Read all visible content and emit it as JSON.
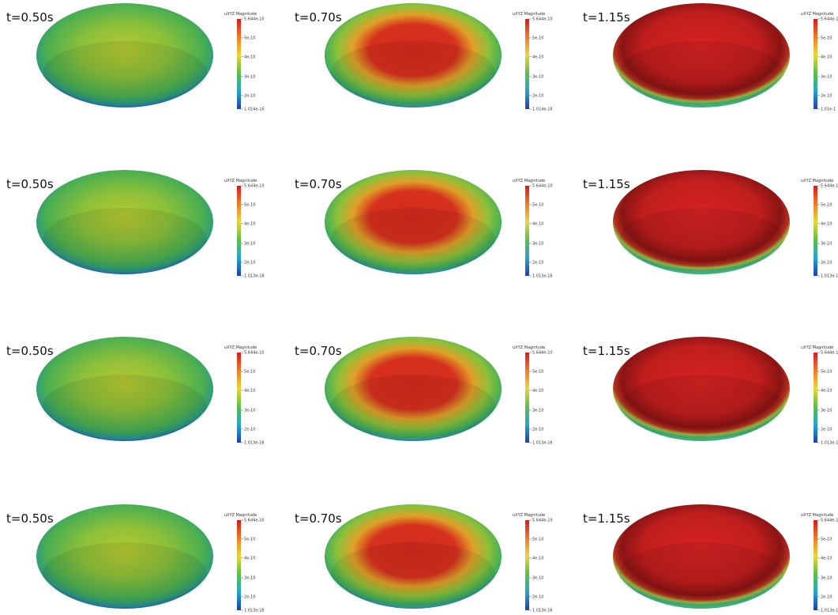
{
  "rows": [
    {
      "panels": [
        {
          "time": "t=0.50s",
          "legend": {
            "title": "uXYZ Magnitude",
            "ticks": [
              "5.644e-10",
              "5e-10",
              "4e-10",
              "3e-10",
              "2e-10",
              "1.014e-16"
            ]
          }
        },
        {
          "time": "t=0.70s",
          "legend": {
            "title": "uXYZ Magnitude",
            "ticks": [
              "5.644e-10",
              "5e-10",
              "4e-10",
              "3e-10",
              "2e-10",
              "1.014e-16"
            ]
          }
        },
        {
          "time": "t=1.15s",
          "legend": {
            "title": "uXYZ Magnitude",
            "ticks": [
              "5.644e-1",
              "5e-10",
              "4e-10",
              "3e-10",
              "2e-10",
              "1.01e-1"
            ]
          }
        }
      ]
    },
    {
      "panels": [
        {
          "time": "t=0.50s",
          "legend": {
            "title": "uXYZ Magnitude",
            "ticks": [
              "5.644e-10",
              "5e-10",
              "4e-10",
              "3e-10",
              "2e-10",
              "1.013e-16"
            ]
          }
        },
        {
          "time": "t=0.70s",
          "legend": {
            "title": "uXYZ Magnitude",
            "ticks": [
              "5.644e-10",
              "5e-10",
              "4e-10",
              "3e-10",
              "2e-10",
              "1.013e-16"
            ]
          }
        },
        {
          "time": "t=1.15s",
          "legend": {
            "title": "uXYZ Magnitude",
            "ticks": [
              "5.644e-1",
              "5e-10",
              "4e-10",
              "3e-10",
              "2e-10",
              "1.013e-1"
            ]
          }
        }
      ]
    },
    {
      "panels": [
        {
          "time": "t=0.50s",
          "legend": {
            "title": "uXYZ Magnitude",
            "ticks": [
              "5.644e-10",
              "5e-10",
              "4e-10",
              "3e-10",
              "2e-10",
              "1.013e-16"
            ]
          }
        },
        {
          "time": "t=0.70s",
          "legend": {
            "title": "uXYZ Magnitude",
            "ticks": [
              "5.644e-10",
              "5e-10",
              "4e-10",
              "3e-10",
              "2e-10",
              "1.013e-16"
            ]
          }
        },
        {
          "time": "t=1.15s",
          "legend": {
            "title": "uXYZ Magnitude",
            "ticks": [
              "5.644e-1",
              "5e-10",
              "4e-10",
              "3e-10",
              "2e-10",
              "1.013e-1"
            ]
          }
        }
      ]
    },
    {
      "panels": [
        {
          "time": "t=0.50s",
          "legend": {
            "title": "uXYZ Magnitude",
            "ticks": [
              "5.644e-10",
              "5e-10",
              "4e-10",
              "3e-10",
              "2e-10",
              "1.013e-16"
            ]
          }
        },
        {
          "time": "t=0.70s",
          "legend": {
            "title": "uXYZ Magnitude",
            "ticks": [
              "5.644e-10",
              "5e-10",
              "4e-10",
              "3e-10",
              "2e-10",
              "1.013e-16"
            ]
          }
        },
        {
          "time": "t=1.15s",
          "legend": {
            "title": "uXYZ Magnitude",
            "ticks": [
              "5.644e-1",
              "5e-10",
              "4e-10",
              "3e-10",
              "2e-10",
              "1.013e-1"
            ]
          }
        }
      ]
    }
  ]
}
